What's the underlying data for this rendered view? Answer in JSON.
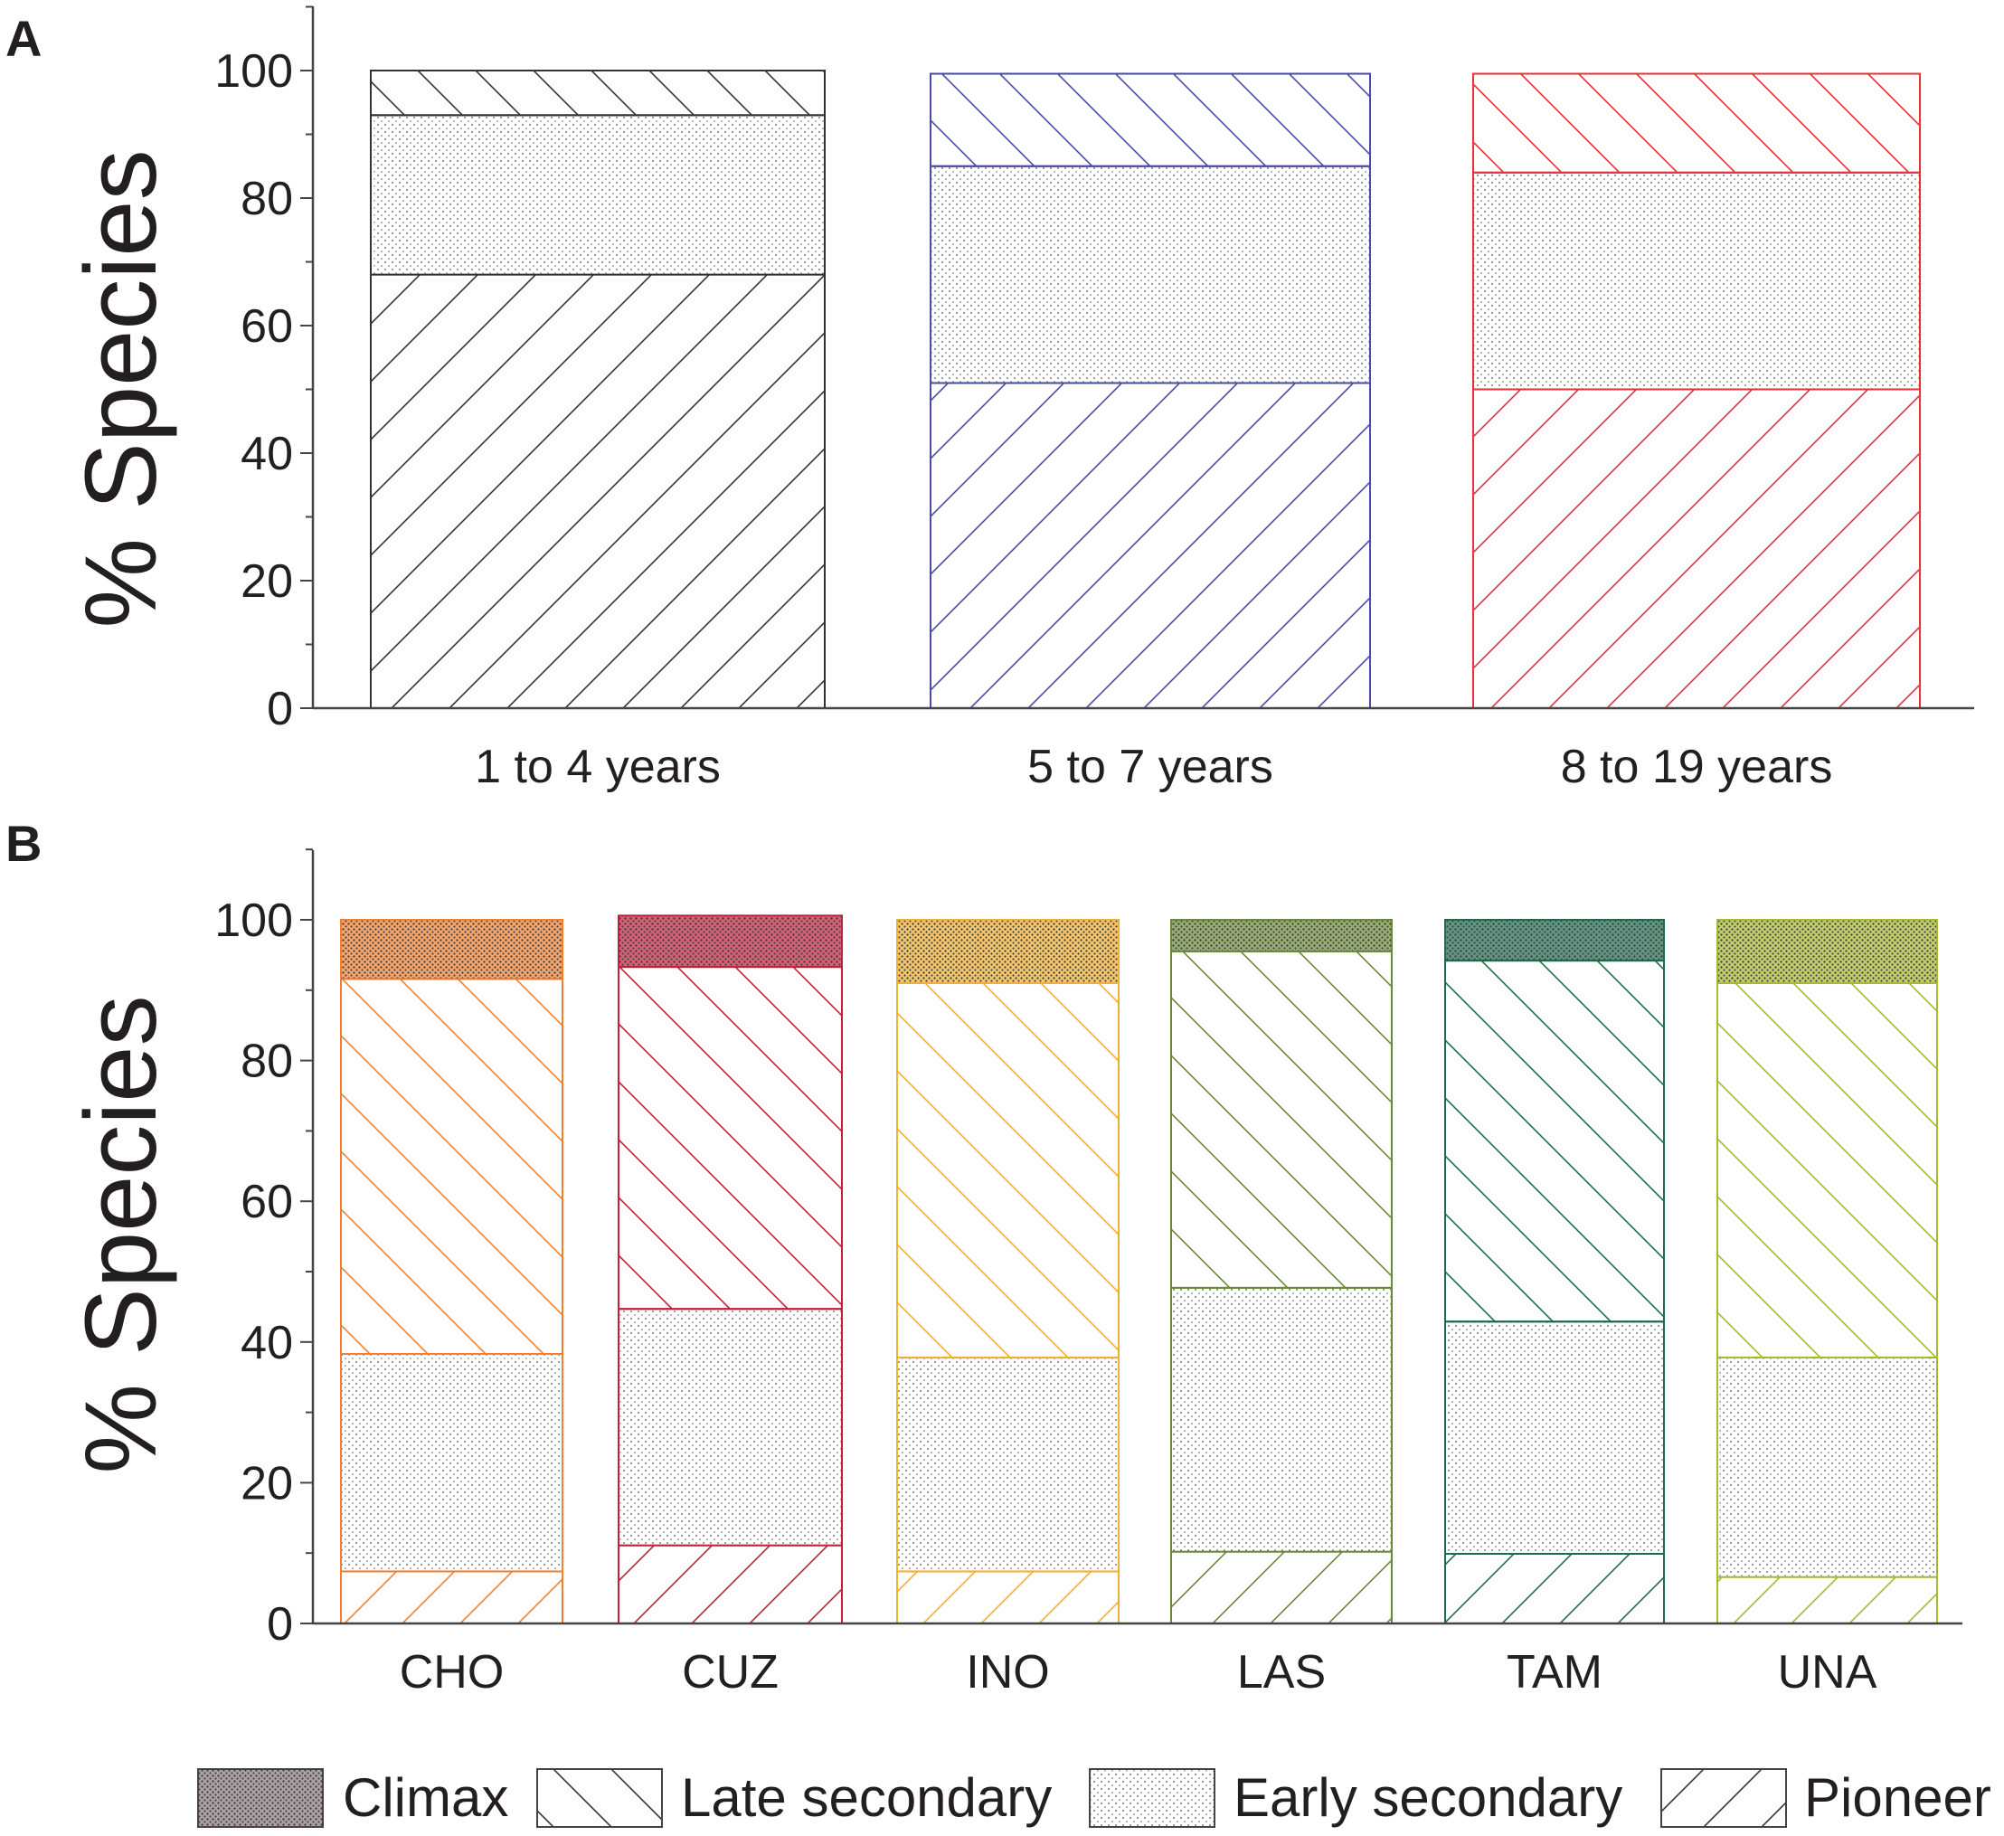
{
  "chart_data": [
    {
      "panel": "A",
      "type": "bar",
      "stacked": true,
      "ylabel": "% Species",
      "ylim": [
        0,
        110
      ],
      "yticks": [
        0,
        20,
        40,
        60,
        80,
        100
      ],
      "categories": [
        "1 to 4 years",
        "5 to 7 years",
        "8 to 19 years"
      ],
      "colors": [
        "#333333",
        "#4a4aa8",
        "#e8303a"
      ],
      "series": [
        {
          "name": "Pioneer",
          "values": [
            68,
            51,
            50
          ]
        },
        {
          "name": "Early secondary",
          "values": [
            25,
            34,
            34
          ]
        },
        {
          "name": "Late secondary",
          "values": [
            7,
            14.5,
            15.5
          ]
        },
        {
          "name": "Climax",
          "values": [
            0,
            0,
            0
          ]
        }
      ]
    },
    {
      "panel": "B",
      "type": "bar",
      "stacked": true,
      "ylabel": "% Species",
      "ylim": [
        0,
        110
      ],
      "yticks": [
        0,
        20,
        40,
        60,
        80,
        100
      ],
      "categories": [
        "CHO",
        "CUZ",
        "INO",
        "LAS",
        "TAM",
        "UNA"
      ],
      "colors": [
        "#f08030",
        "#c0203a",
        "#f0b030",
        "#6a8a3a",
        "#1f6a4a",
        "#a8b830"
      ],
      "series": [
        {
          "name": "Pioneer",
          "values": [
            7.4,
            11.1,
            7.4,
            10.2,
            9.9,
            6.6
          ]
        },
        {
          "name": "Early secondary",
          "values": [
            30.9,
            33.6,
            30.4,
            37.5,
            33.0,
            31.2
          ]
        },
        {
          "name": "Late secondary",
          "values": [
            53.3,
            48.6,
            53.2,
            47.8,
            51.3,
            53.2
          ]
        },
        {
          "name": "Climax",
          "values": [
            8.4,
            7.3,
            9.0,
            4.5,
            5.8,
            9.0
          ]
        }
      ]
    }
  ],
  "legend": {
    "placement": "bottom",
    "items": [
      "Climax",
      "Late secondary",
      "Early secondary",
      "Pioneer"
    ]
  }
}
